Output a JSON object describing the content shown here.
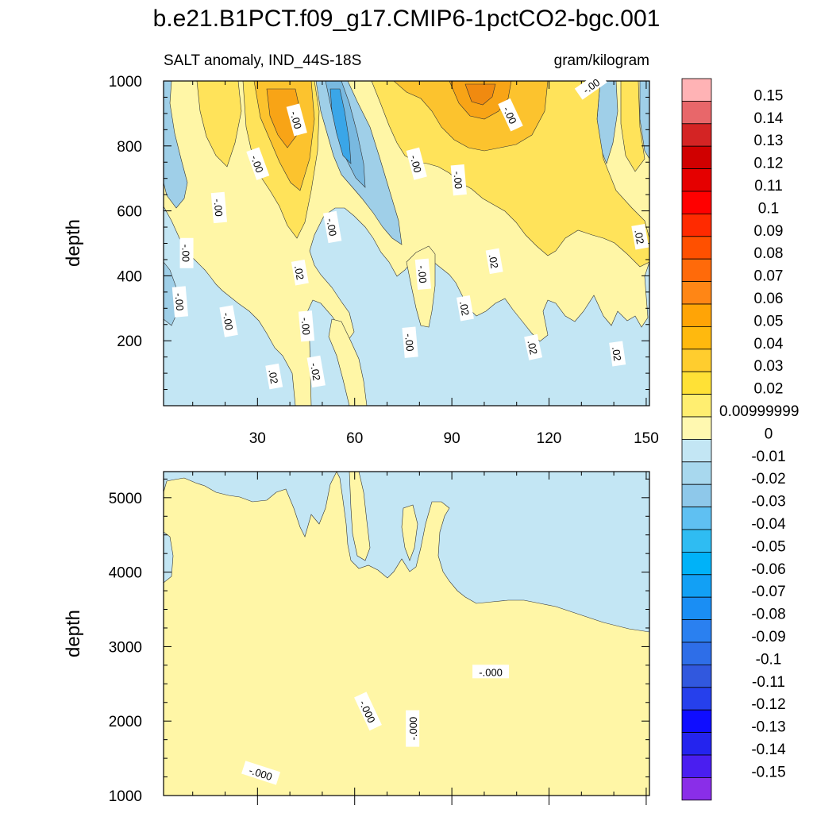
{
  "title": "b.e21.B1PCT.f09_g17.CMIP6-1pctCO2-bgc.001",
  "colors": {
    "pos_weak": "#fff6a6",
    "pos_a": "#ffe35a",
    "pos_b": "#fcc32e",
    "pos_c": "#f8a416",
    "pos_d": "#f08a10",
    "neg_weak": "#c3e6f4",
    "neg_a": "#9fcfe8",
    "neg_b": "#79b9e0",
    "neg_c": "#3aa6e8"
  },
  "chart_data": [
    {
      "type": "heatmap",
      "panel": "upper",
      "left_label": "SALT anomaly, IND_44S-18S",
      "right_label": "gram/kilogram",
      "xlabel": "",
      "ylabel": "depth",
      "xlim": [
        1,
        151
      ],
      "ylim": [
        1000,
        0
      ],
      "xticks": [
        30,
        60,
        90,
        120,
        150
      ],
      "yticks": [
        200,
        400,
        600,
        800,
        1000
      ],
      "contour_labels": [
        {
          "text": ".02",
          "x": 35,
          "y": 90,
          "angle": 80
        },
        {
          "text": "-.02",
          "x": 48,
          "y": 105,
          "angle": 80
        },
        {
          "text": "-.00",
          "x": 77,
          "y": 195,
          "angle": 85
        },
        {
          "text": ".02",
          "x": 115,
          "y": 180,
          "angle": 78
        },
        {
          "text": ".02",
          "x": 141,
          "y": 160,
          "angle": 82
        },
        {
          "text": "-.00",
          "x": 21,
          "y": 260,
          "angle": 80
        },
        {
          "text": "-.00",
          "x": 6,
          "y": 320,
          "angle": 85
        },
        {
          "text": "-.00",
          "x": 45,
          "y": 245,
          "angle": 85
        },
        {
          "text": ".02",
          "x": 94,
          "y": 300,
          "angle": 80
        },
        {
          "text": "-.00",
          "x": 8,
          "y": 470,
          "angle": 90
        },
        {
          "text": ".02",
          "x": 43,
          "y": 410,
          "angle": 80
        },
        {
          "text": "-.00",
          "x": 81,
          "y": 405,
          "angle": 85
        },
        {
          "text": ".02",
          "x": 103,
          "y": 445,
          "angle": 80
        },
        {
          "text": "-.00",
          "x": 53,
          "y": 550,
          "angle": 80
        },
        {
          "text": ".02",
          "x": 148,
          "y": 520,
          "angle": 80
        },
        {
          "text": "-.00",
          "x": 18,
          "y": 610,
          "angle": 85
        },
        {
          "text": "-.00",
          "x": 30,
          "y": 745,
          "angle": 70
        },
        {
          "text": "-.00",
          "x": 79,
          "y": 745,
          "angle": 75
        },
        {
          "text": "-.00",
          "x": 92,
          "y": 695,
          "angle": 85
        },
        {
          "text": "-.00",
          "x": 42,
          "y": 880,
          "angle": 75
        },
        {
          "text": "-.00",
          "x": 108,
          "y": 895,
          "angle": 65
        },
        {
          "text": "-.00",
          "x": 133,
          "y": 985,
          "angle": -35
        }
      ]
    },
    {
      "type": "heatmap",
      "panel": "lower",
      "xlabel": "",
      "ylabel": "depth",
      "xlim": [
        1,
        151
      ],
      "ylim": [
        5350,
        1000
      ],
      "yticks": [
        1000,
        2000,
        3000,
        4000,
        5000
      ],
      "contour_labels": [
        {
          "text": "-.000",
          "x": 31,
          "y": 1300,
          "angle": 18
        },
        {
          "text": "-.000",
          "x": 64,
          "y": 2130,
          "angle": 65
        },
        {
          "text": "-.000",
          "x": 78,
          "y": 1900,
          "angle": -90
        },
        {
          "text": "-.000",
          "x": 102,
          "y": 2660,
          "angle": 0
        }
      ]
    }
  ],
  "colorbar": {
    "levels": [
      "0.15",
      "0.14",
      "0.13",
      "0.12",
      "0.11",
      "0.1",
      "0.09",
      "0.08",
      "0.07",
      "0.06",
      "0.05",
      "0.04",
      "0.03",
      "0.02",
      "0.00999999",
      "0",
      "-0.01",
      "-0.02",
      "-0.03",
      "-0.04",
      "-0.05",
      "-0.06",
      "-0.07",
      "-0.08",
      "-0.09",
      "-0.1",
      "-0.11",
      "-0.12",
      "-0.13",
      "-0.14",
      "-0.15"
    ],
    "box_colors": [
      "#ffb3b5",
      "#e8676a",
      "#d42424",
      "#d00000",
      "#e50000",
      "#ff0000",
      "#ff2a00",
      "#ff5000",
      "#ff6a0a",
      "#ff8615",
      "#ffa406",
      "#ffb90e",
      "#ffcd2e",
      "#ffe136",
      "#ffee70",
      "#fff8b0",
      "#c3e6f4",
      "#a8d8ee",
      "#8ec8ea",
      "#5fc0f2",
      "#2fbcf2",
      "#00b2f8",
      "#12a0f5",
      "#1a8ef4",
      "#2a80f0",
      "#2e6ee8",
      "#3158de",
      "#2640ec",
      "#0f0dff",
      "#2424ee",
      "#4a1ef0",
      "#8a2ee8"
    ]
  }
}
